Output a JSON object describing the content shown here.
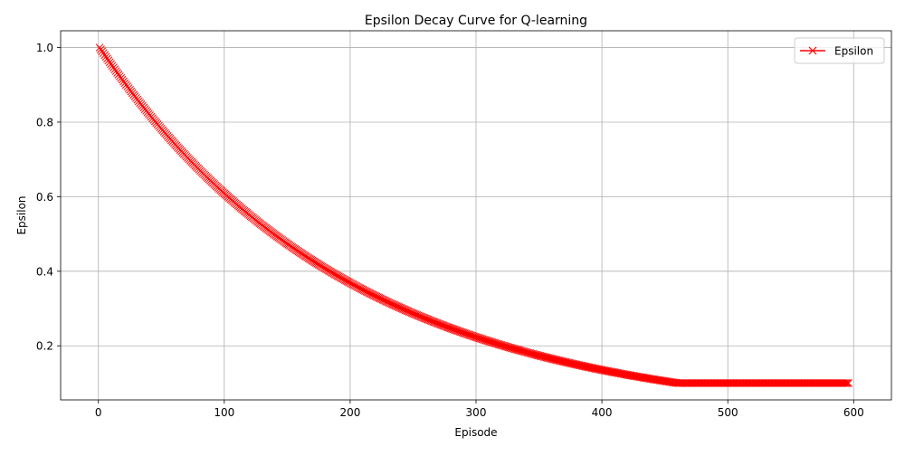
{
  "chart_data": {
    "type": "line",
    "title": "Epsilon Decay Curve for Q-learning",
    "xlabel": "Episode",
    "ylabel": "Epsilon",
    "xlim": [
      -30,
      630
    ],
    "ylim": [
      0.055,
      1.045
    ],
    "xticks": [
      0,
      100,
      200,
      300,
      400,
      500,
      600
    ],
    "yticks": [
      0.2,
      0.4,
      0.6,
      0.8,
      1.0
    ],
    "ytick_labels": [
      "0.2",
      "0.4",
      "0.6",
      "0.8",
      "1.0"
    ],
    "grid": true,
    "legend_position": "top-right",
    "series": [
      {
        "name": "Epsilon",
        "color": "#ff0000",
        "marker": "x",
        "episode_start": 1,
        "episode_end": 596,
        "decay_rate": 0.995,
        "min_value": 0.1,
        "x": [
          1,
          50,
          100,
          150,
          200,
          250,
          300,
          350,
          400,
          450,
          460,
          500,
          550,
          596
        ],
        "y": [
          1.0,
          0.783,
          0.609,
          0.474,
          0.369,
          0.287,
          0.223,
          0.174,
          0.135,
          0.105,
          0.1,
          0.1,
          0.1,
          0.1
        ]
      }
    ]
  }
}
